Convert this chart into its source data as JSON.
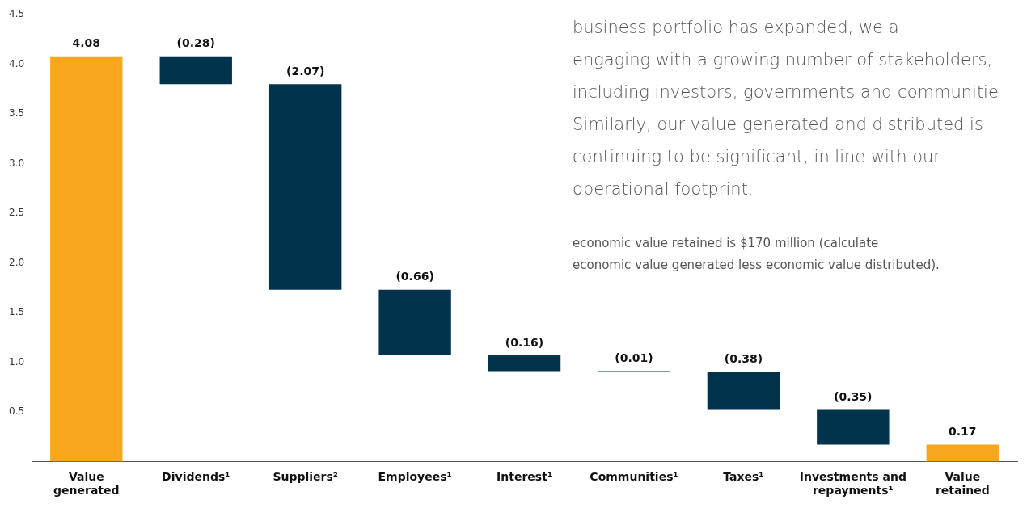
{
  "chart_data": {
    "type": "bar",
    "categories": [
      "Value generated",
      "Dividends¹",
      "Suppliers²",
      "Employees¹",
      "Interest¹",
      "Communities¹",
      "Taxes¹",
      "Investments and repayments¹",
      "Value retained"
    ],
    "values": [
      4.08,
      -0.28,
      -2.07,
      -0.66,
      -0.16,
      -0.01,
      -0.38,
      -0.35,
      0.17
    ],
    "base": [
      0,
      4.08,
      3.8,
      1.73,
      1.07,
      0.91,
      0.9,
      0.52,
      0
    ],
    "colors": [
      "#f9a81e",
      "#01334c",
      "#01334c",
      "#01334c",
      "#01334c",
      "#01334c",
      "#01334c",
      "#01334c",
      "#f9a81e"
    ],
    "value_labels": [
      "4.08",
      "(0.28)",
      "(2.07)",
      "(0.66)",
      "(0.16)",
      "(0.01)",
      "(0.38)",
      "(0.35)",
      "0.17"
    ],
    "ylim": [
      0,
      4.5
    ],
    "yticks": [
      0.5,
      {
        "value": 1,
        "label": "1.0"
      },
      1.5,
      {
        "value": 2,
        "label": "2.0"
      },
      2.5,
      {
        "value": 3,
        "label": "3.0"
      },
      3.5,
      {
        "value": 4,
        "label": "4.0"
      },
      4.5
    ],
    "grid": false,
    "legend": false,
    "annotations": [
      "business portfolio has expanded, we a",
      "engaging with a growing number of stakeholders,",
      "including investors, governments and communitie",
      "Similarly, our value generated and distributed is",
      "continuing to be significant, in line with our",
      "operational footprint.",
      "economic value retained is $170 million (calculate",
      "economic value generated less economic value distributed)."
    ]
  }
}
